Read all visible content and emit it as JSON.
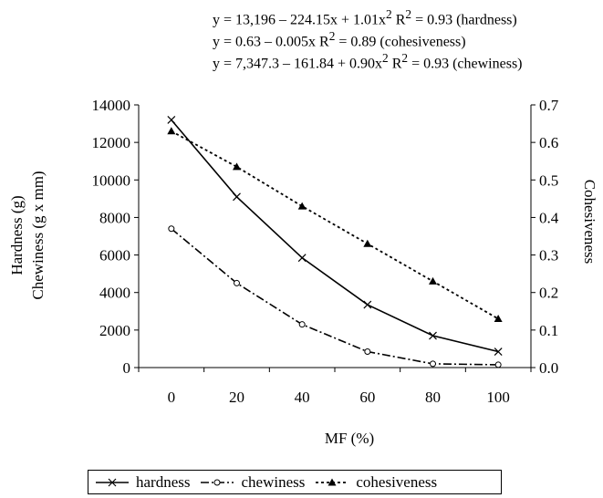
{
  "equations": [
    {
      "text": "y = 13,196 – 224.15x + 1.01x",
      "sup": "2",
      "tail": " R",
      "sup2": "2",
      "tail2": " = 0.93 (hardness)"
    },
    {
      "text": "y = 0.63 – 0.005x  R",
      "sup": "2",
      "tail": " = 0.89 (cohesiveness)",
      "sup2": "",
      "tail2": ""
    },
    {
      "text": "y = 7,347.3 – 161.84 + 0.90x",
      "sup": "2",
      "tail": "  R",
      "sup2": "2",
      "tail2": " = 0.93 (chewiness)"
    }
  ],
  "chart_data": {
    "type": "line",
    "title": "",
    "xlabel": "MF (%)",
    "ylabel_left": [
      "Hardness (g)",
      "Chewiness (g x mm)"
    ],
    "ylabel_right": "Cohesiveness",
    "x": [
      0,
      20,
      40,
      60,
      80,
      100
    ],
    "x_ticks": [
      "0",
      "20",
      "40",
      "60",
      "80",
      "100"
    ],
    "y_left_ticks": [
      "0",
      "2000",
      "4000",
      "6000",
      "8000",
      "10000",
      "12000",
      "14000"
    ],
    "y_right_ticks": [
      "0.0",
      "0.1",
      "0.2",
      "0.3",
      "0.4",
      "0.5",
      "0.6",
      "0.7"
    ],
    "ylim_left": [
      0,
      14000
    ],
    "ylim_right": [
      0,
      0.7
    ],
    "xlim": [
      -10,
      110
    ],
    "grid": false,
    "legend_position": "bottom",
    "series": [
      {
        "name": "hardness",
        "axis": "left",
        "marker": "x",
        "dash": "solid",
        "values": [
          13200,
          9100,
          5850,
          3350,
          1700,
          850
        ]
      },
      {
        "name": "chewiness",
        "axis": "left",
        "marker": "circle",
        "dash": "dashdot",
        "values": [
          7400,
          4500,
          2300,
          850,
          200,
          150
        ]
      },
      {
        "name": "cohesiveness",
        "axis": "right",
        "marker": "triangle",
        "dash": "dotted",
        "values": [
          0.63,
          0.535,
          0.43,
          0.33,
          0.23,
          0.13
        ]
      }
    ]
  }
}
